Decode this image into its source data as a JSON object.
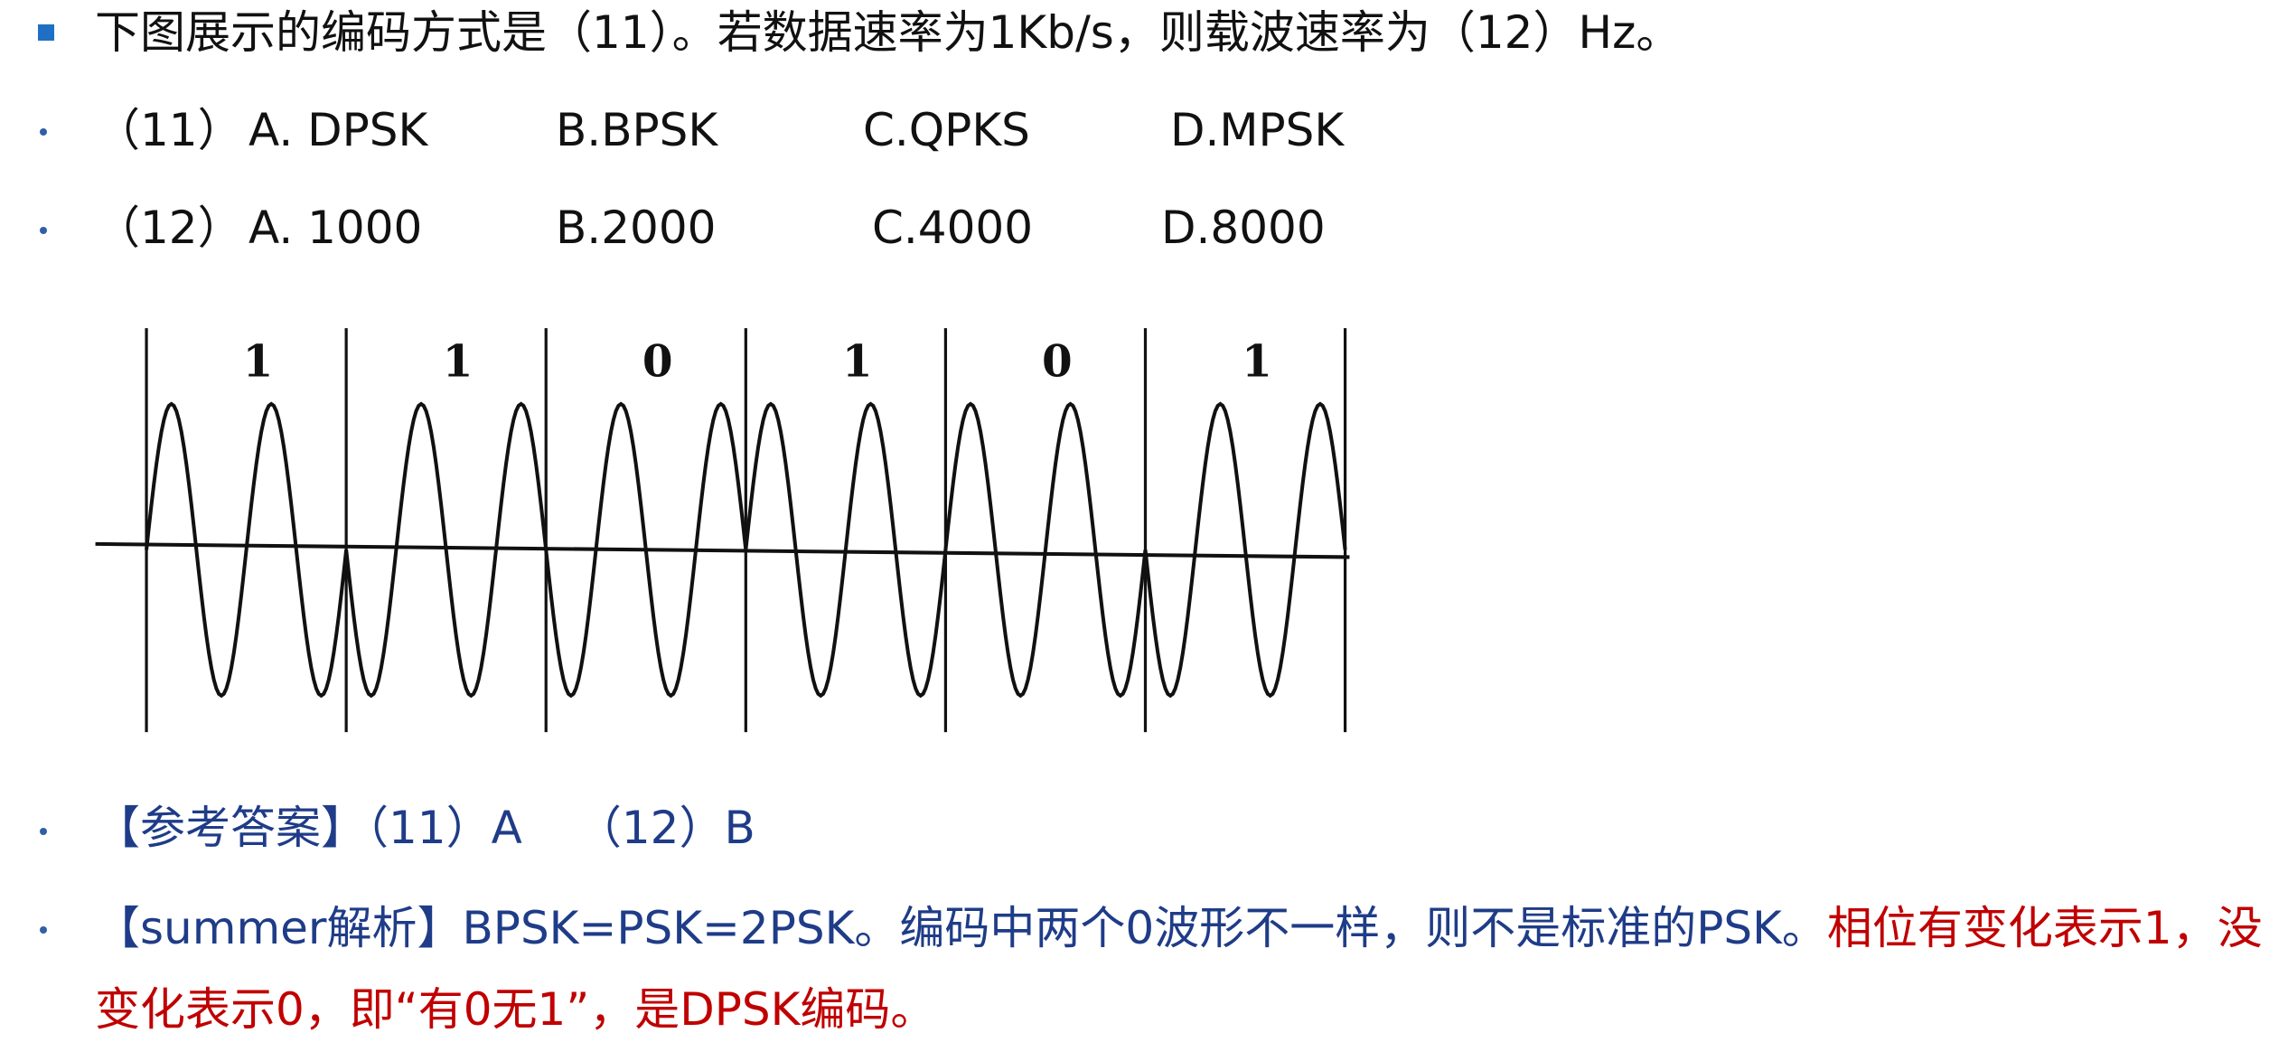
{
  "question": "下图展示的编码方式是（11）。若数据速率为1Kb/s，则载波速率为（12）Hz。",
  "options": [
    {
      "label": "（11）",
      "choices": [
        "A. DPSK",
        "B.BPSK",
        "C.QPKS",
        "D.MPSK"
      ]
    },
    {
      "label": "（12）",
      "choices": [
        "A. 1000",
        "B.2000",
        "C.4000",
        "D.8000"
      ]
    }
  ],
  "figure": {
    "bits": [
      "1",
      "1",
      "0",
      "1",
      "0",
      "1"
    ]
  },
  "answer": {
    "label": "【参考答案】",
    "parts": [
      "（11）A",
      "（12）B"
    ]
  },
  "analysis": {
    "label": "【summer解析】",
    "text": "BPSK=PSK=2PSK。编码中两个0波形不一样，则不是标准的PSK。",
    "highlight": "相位有变化表示1，没变化表示0，即“有0无1”，是DPSK编码。"
  }
}
